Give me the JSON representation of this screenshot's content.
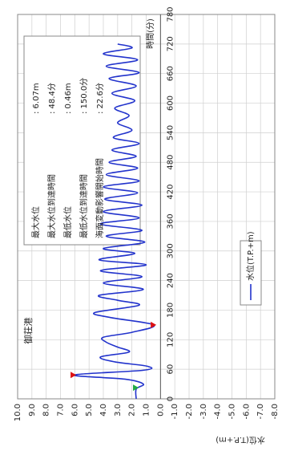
{
  "chart_data": {
    "type": "line",
    "title": "御荘港",
    "xlabel": "時間(分)",
    "ylabel": "水位(T.P.+m)",
    "xlim": [
      0,
      780
    ],
    "xticks": [
      0,
      60,
      120,
      180,
      240,
      300,
      360,
      420,
      480,
      540,
      600,
      660,
      720,
      780
    ],
    "ylim": [
      -8,
      10
    ],
    "yticks": [
      {
        "value": 10,
        "label": "10.0"
      },
      {
        "value": 9,
        "label": "9.0"
      },
      {
        "value": 8,
        "label": "8.0"
      },
      {
        "value": 7,
        "label": "7.0"
      },
      {
        "value": 6,
        "label": "6.0"
      },
      {
        "value": 5,
        "label": "5.0"
      },
      {
        "value": 4,
        "label": "4.0"
      },
      {
        "value": 3,
        "label": "3.0"
      },
      {
        "value": 2,
        "label": "2.0"
      },
      {
        "value": 1,
        "label": "1.0"
      },
      {
        "value": 0,
        "label": "0.0"
      },
      {
        "value": -1,
        "label": "-1.0"
      },
      {
        "value": -2,
        "label": "-2.0"
      },
      {
        "value": -3,
        "label": "-3.0"
      },
      {
        "value": -4,
        "label": "-4.0"
      },
      {
        "value": -5,
        "label": "-5.0"
      },
      {
        "value": -6,
        "label": "-6.0"
      },
      {
        "value": -7,
        "label": "-7.0"
      },
      {
        "value": -8,
        "label": "-8.0"
      }
    ],
    "grid": true,
    "legend": "right",
    "x": [
      0,
      20,
      30,
      40,
      48.4,
      58,
      66,
      75,
      85,
      95,
      105,
      115,
      125,
      135,
      150,
      165,
      175,
      190,
      200,
      210,
      222,
      235,
      248,
      260,
      272,
      282,
      295,
      305,
      318,
      330,
      342,
      355,
      367,
      380,
      393,
      405,
      418,
      430,
      442,
      455,
      468,
      480,
      492,
      505,
      518,
      530,
      545,
      560,
      575,
      590,
      605,
      620,
      635,
      650,
      662,
      675,
      688,
      700,
      712,
      720
    ],
    "series": [
      {
        "name": "水位(T.P.+m)",
        "color": "#2233cc",
        "values": [
          1.7,
          1.7,
          1.2,
          2.5,
          6.07,
          1.2,
          0.9,
          3.2,
          4.2,
          2.2,
          3.0,
          3.8,
          4.0,
          2.0,
          0.46,
          3.5,
          4.6,
          1.5,
          3.0,
          4.3,
          1.2,
          4.0,
          1.3,
          4.2,
          1.0,
          4.3,
          1.8,
          4.0,
          1.1,
          3.8,
          1.3,
          4.2,
          1.5,
          4.0,
          1.3,
          3.9,
          1.6,
          4.0,
          1.5,
          3.8,
          1.6,
          3.6,
          1.7,
          3.4,
          1.5,
          3.3,
          2.0,
          3.0,
          2.2,
          3.2,
          1.8,
          3.4,
          1.7,
          3.6,
          1.5,
          3.8,
          1.6,
          4.0,
          2.0,
          3.0
        ]
      }
    ],
    "markers": [
      {
        "x": 48.4,
        "value": 6.07,
        "color": "#dd1111"
      },
      {
        "x": 150,
        "value": 0.46,
        "color": "#dd1111"
      },
      {
        "x": 22.6,
        "value": 1.7,
        "color": "#22aa44"
      }
    ],
    "info": [
      {
        "label": "最大水位",
        "value": ": 6.07m"
      },
      {
        "label": "最大水位到達時間",
        "value": ": 48.4分"
      },
      {
        "label": "最低水位",
        "value": ": 0.46m"
      },
      {
        "label": "最低水位到達時間",
        "value": ": 150.0分"
      },
      {
        "label": "海面変動影響開始時間",
        "value": ": 22.6分"
      }
    ]
  }
}
